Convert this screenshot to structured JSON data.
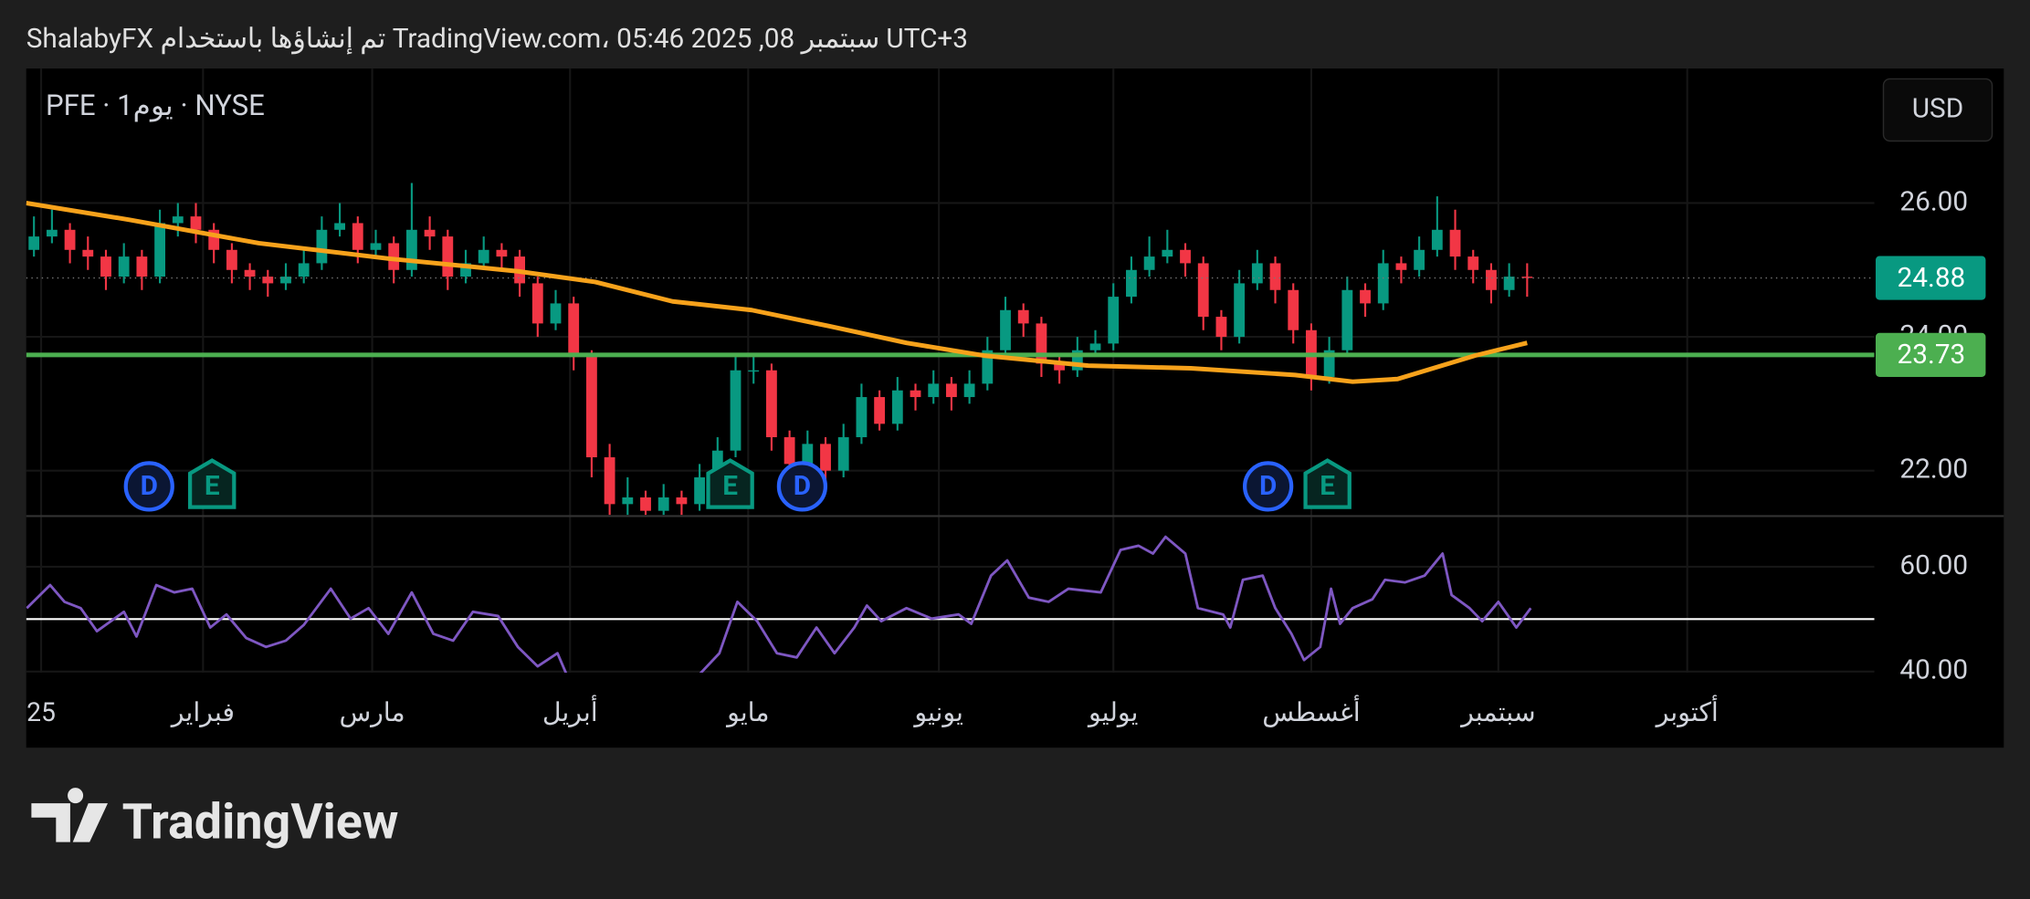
{
  "header": {
    "text": "ShalabyFX تم إنشاؤها باستخدام TradingView.com، 05:46 2025 ,08 سبتمبر UTC+3"
  },
  "logo": {
    "text": "TradingView"
  },
  "chart_data": {
    "type": "candlestick",
    "symbol": "PFE · 1يوم · NYSE",
    "currency": "USD",
    "up_color": "#089981",
    "down_color": "#f23645",
    "grid": true,
    "xlim": [
      -0.43,
      102.3
    ],
    "xticks": [
      {
        "value": 0.4,
        "label": "25"
      },
      {
        "value": 9.4,
        "label": "فبراير"
      },
      {
        "value": 18.8,
        "label": "مارس"
      },
      {
        "value": 29.8,
        "label": "أبريل"
      },
      {
        "value": 39.7,
        "label": "مايو"
      },
      {
        "value": 50.3,
        "label": "يونيو"
      },
      {
        "value": 60.0,
        "label": "يوليو"
      },
      {
        "value": 71.0,
        "label": "أغسطس"
      },
      {
        "value": 81.4,
        "label": "سبتمبر"
      },
      {
        "value": 91.9,
        "label": "أكتوبر"
      }
    ],
    "ylim": [
      21.34,
      28.01
    ],
    "yticks": [
      {
        "value": 22,
        "label": "22.00"
      },
      {
        "value": 24,
        "label": "24.00"
      },
      {
        "value": 26,
        "label": "26.00"
      }
    ],
    "candles": [
      [
        25.3,
        25.8,
        25.2,
        25.5
      ],
      [
        25.5,
        25.9,
        25.4,
        25.6
      ],
      [
        25.6,
        25.7,
        25.1,
        25.3
      ],
      [
        25.3,
        25.5,
        25.0,
        25.2
      ],
      [
        25.2,
        25.3,
        24.7,
        24.9
      ],
      [
        24.9,
        25.4,
        24.8,
        25.2
      ],
      [
        25.2,
        25.3,
        24.7,
        24.9
      ],
      [
        24.9,
        25.9,
        24.8,
        25.7
      ],
      [
        25.7,
        26.0,
        25.5,
        25.8
      ],
      [
        25.8,
        26.0,
        25.4,
        25.6
      ],
      [
        25.6,
        25.7,
        25.1,
        25.3
      ],
      [
        25.3,
        25.4,
        24.8,
        25.0
      ],
      [
        25.0,
        25.1,
        24.7,
        24.9
      ],
      [
        24.9,
        25.0,
        24.6,
        24.8
      ],
      [
        24.8,
        25.1,
        24.7,
        24.9
      ],
      [
        24.9,
        25.3,
        24.8,
        25.1
      ],
      [
        25.1,
        25.8,
        25.0,
        25.6
      ],
      [
        25.6,
        26.0,
        25.5,
        25.7
      ],
      [
        25.7,
        25.8,
        25.1,
        25.3
      ],
      [
        25.3,
        25.6,
        25.2,
        25.4
      ],
      [
        25.4,
        25.5,
        24.8,
        25.0
      ],
      [
        25.0,
        26.3,
        24.9,
        25.6
      ],
      [
        25.6,
        25.8,
        25.3,
        25.5
      ],
      [
        25.5,
        25.6,
        24.7,
        24.9
      ],
      [
        24.9,
        25.3,
        24.8,
        25.1
      ],
      [
        25.1,
        25.5,
        25.0,
        25.3
      ],
      [
        25.3,
        25.4,
        25.0,
        25.2
      ],
      [
        25.2,
        25.3,
        24.6,
        24.8
      ],
      [
        24.8,
        24.9,
        24.0,
        24.2
      ],
      [
        24.2,
        24.7,
        24.1,
        24.5
      ],
      [
        24.5,
        24.6,
        23.5,
        23.7
      ],
      [
        23.7,
        23.8,
        21.9,
        22.2
      ],
      [
        22.2,
        22.4,
        21.2,
        21.5
      ],
      [
        21.5,
        21.9,
        21.3,
        21.6
      ],
      [
        21.6,
        21.7,
        21.2,
        21.4
      ],
      [
        21.4,
        21.8,
        21.3,
        21.6
      ],
      [
        21.6,
        21.7,
        21.3,
        21.5
      ],
      [
        21.5,
        22.1,
        21.4,
        21.9
      ],
      [
        21.9,
        22.5,
        21.8,
        22.3
      ],
      [
        22.3,
        23.7,
        22.2,
        23.5
      ],
      [
        23.5,
        23.7,
        23.3,
        23.5
      ],
      [
        23.5,
        23.6,
        22.3,
        22.5
      ],
      [
        22.5,
        22.6,
        21.9,
        22.1
      ],
      [
        22.1,
        22.6,
        22.0,
        22.4
      ],
      [
        22.4,
        22.5,
        21.8,
        22.0
      ],
      [
        22.0,
        22.7,
        21.9,
        22.5
      ],
      [
        22.5,
        23.3,
        22.4,
        23.1
      ],
      [
        23.1,
        23.2,
        22.6,
        22.7
      ],
      [
        22.7,
        23.4,
        22.6,
        23.2
      ],
      [
        23.2,
        23.3,
        22.9,
        23.1
      ],
      [
        23.1,
        23.5,
        23.0,
        23.3
      ],
      [
        23.3,
        23.4,
        22.9,
        23.1
      ],
      [
        23.1,
        23.5,
        23.0,
        23.3
      ],
      [
        23.3,
        24.0,
        23.2,
        23.8
      ],
      [
        23.8,
        24.6,
        23.7,
        24.4
      ],
      [
        24.4,
        24.5,
        24.0,
        24.2
      ],
      [
        24.2,
        24.3,
        23.4,
        23.6
      ],
      [
        23.6,
        23.7,
        23.3,
        23.5
      ],
      [
        23.5,
        24.0,
        23.4,
        23.8
      ],
      [
        23.8,
        24.1,
        23.7,
        23.9
      ],
      [
        23.9,
        24.8,
        23.8,
        24.6
      ],
      [
        24.6,
        25.2,
        24.5,
        25.0
      ],
      [
        25.0,
        25.5,
        24.9,
        25.2
      ],
      [
        25.2,
        25.6,
        25.1,
        25.3
      ],
      [
        25.3,
        25.4,
        24.9,
        25.1
      ],
      [
        25.1,
        25.2,
        24.1,
        24.3
      ],
      [
        24.3,
        24.4,
        23.8,
        24.0
      ],
      [
        24.0,
        25.0,
        23.9,
        24.8
      ],
      [
        24.8,
        25.3,
        24.7,
        25.1
      ],
      [
        25.1,
        25.2,
        24.5,
        24.7
      ],
      [
        24.7,
        24.8,
        23.9,
        24.1
      ],
      [
        24.1,
        24.2,
        23.2,
        23.4
      ],
      [
        23.4,
        24.0,
        23.3,
        23.8
      ],
      [
        23.8,
        24.9,
        23.7,
        24.7
      ],
      [
        24.7,
        24.8,
        24.3,
        24.5
      ],
      [
        24.5,
        25.3,
        24.4,
        25.1
      ],
      [
        25.1,
        25.2,
        24.8,
        25.0
      ],
      [
        25.0,
        25.5,
        24.9,
        25.3
      ],
      [
        25.3,
        26.1,
        25.2,
        25.6
      ],
      [
        25.6,
        25.9,
        25.0,
        25.2
      ],
      [
        25.2,
        25.3,
        24.8,
        25.0
      ],
      [
        25.0,
        25.1,
        24.5,
        24.7
      ],
      [
        24.7,
        25.1,
        24.6,
        24.9
      ],
      [
        24.9,
        25.1,
        24.6,
        24.88
      ]
    ],
    "overlay": {
      "color": "#f7a21b",
      "x": [
        -0.43,
        5.3,
        12.5,
        19.7,
        26.9,
        31.2,
        35.5,
        39.9,
        44.2,
        48.5,
        52.8,
        58.6,
        64.3,
        70.1,
        73.3,
        75.8,
        80.1,
        83
      ],
      "values": [
        26.0,
        25.75,
        25.4,
        25.17,
        24.98,
        24.82,
        24.53,
        24.4,
        24.16,
        23.91,
        23.72,
        23.57,
        23.53,
        23.43,
        23.33,
        23.37,
        23.72,
        23.91
      ]
    },
    "hline": {
      "value": 23.73,
      "color": "#4caf50"
    },
    "last": {
      "value": 24.88,
      "color": "#089981"
    },
    "events": [
      {
        "x": 6.4,
        "label": "D"
      },
      {
        "x": 9.9,
        "label": "E"
      },
      {
        "x": 38.7,
        "label": "E"
      },
      {
        "x": 42.7,
        "label": "D"
      },
      {
        "x": 68.6,
        "label": "D"
      },
      {
        "x": 71.9,
        "label": "E"
      }
    ],
    "rsi": {
      "color": "#7e57c2",
      "ylim": [
        39.8,
        69.4
      ],
      "yticks": [
        {
          "value": 40,
          "label": "40.00"
        },
        {
          "value": 60,
          "label": "60.00"
        }
      ],
      "midline": 50,
      "x": [
        -0.4,
        0.9,
        1.7,
        2.6,
        3.5,
        5.0,
        5.7,
        6.8,
        7.8,
        8.8,
        9.8,
        10.7,
        11.8,
        12.9,
        14.0,
        15.0,
        16.5,
        17.6,
        18.6,
        19.7,
        21.0,
        22.2,
        23.3,
        24.4,
        25.8,
        26.9,
        28.0,
        29.1,
        29.6,
        34,
        37.0,
        38.1,
        39.1,
        40.2,
        41.3,
        42.4,
        43.5,
        44.5,
        45.6,
        46.3,
        47.1,
        48.5,
        49.9,
        51.4,
        52.1,
        53.2,
        54.1,
        55.3,
        56.4,
        57.5,
        59.3,
        60.4,
        61.4,
        62.2,
        62.9,
        64.0,
        64.7,
        66.1,
        66.5,
        67.2,
        68.3,
        69.0,
        69.9,
        70.6,
        71.5,
        72.1,
        72.6,
        73.3,
        74.4,
        75.1,
        76.2,
        77.3,
        78.3,
        78.8,
        79.8,
        80.5,
        81.4,
        82.4,
        83.2
      ],
      "values": [
        52.1,
        56.5,
        53.3,
        52.1,
        47.7,
        51.4,
        46.7,
        56.5,
        55.1,
        55.8,
        48.4,
        50.9,
        46.4,
        44.7,
        45.9,
        48.9,
        55.8,
        50.1,
        52.1,
        47.2,
        55.1,
        47.2,
        45.9,
        51.4,
        50.6,
        44.7,
        41.0,
        43.5,
        39.5,
        null,
        39.5,
        43.5,
        53.3,
        49.6,
        43.5,
        42.7,
        48.4,
        43.5,
        48.4,
        52.6,
        49.6,
        52.1,
        50.1,
        50.9,
        49.1,
        58.3,
        61.2,
        54.1,
        53.3,
        55.8,
        55.1,
        63.2,
        64.0,
        62.5,
        65.7,
        62.5,
        52.1,
        50.9,
        48.4,
        57.5,
        58.3,
        52.1,
        47.2,
        42.2,
        44.7,
        55.8,
        49.1,
        52.1,
        53.8,
        57.5,
        57.0,
        58.3,
        62.5,
        54.6,
        52.1,
        49.6,
        53.3,
        48.4,
        52.1
      ]
    }
  }
}
